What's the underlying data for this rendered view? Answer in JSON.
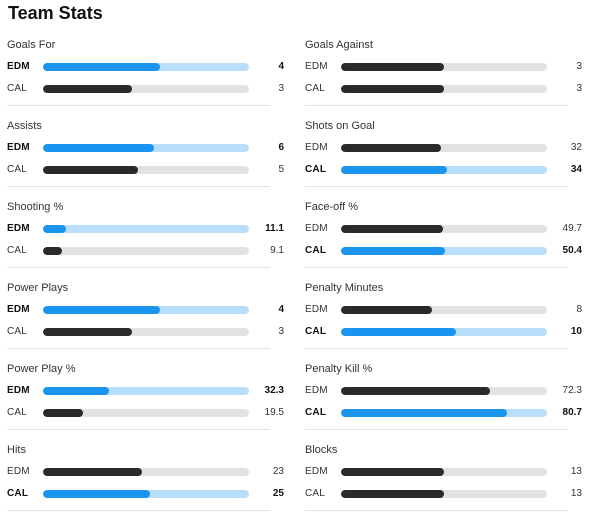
{
  "page": {
    "title": "Team Stats"
  },
  "colors": {
    "leader_fill": "#1b94f0",
    "leader_track": "#b9defb",
    "other_fill": "#2a2a2a",
    "other_track": "#e2e2e2"
  },
  "left": [
    {
      "title": "Goals For",
      "rows": [
        {
          "team": "EDM",
          "value": "4",
          "share": 0.57,
          "leader": true
        },
        {
          "team": "CAL",
          "value": "3",
          "share": 0.43,
          "leader": false
        }
      ]
    },
    {
      "title": "Assists",
      "rows": [
        {
          "team": "EDM",
          "value": "6",
          "share": 0.54,
          "leader": true
        },
        {
          "team": "CAL",
          "value": "5",
          "share": 0.46,
          "leader": false
        }
      ]
    },
    {
      "title": "Shooting %",
      "rows": [
        {
          "team": "EDM",
          "value": "11.1",
          "share": 0.11,
          "leader": true
        },
        {
          "team": "CAL",
          "value": "9.1",
          "share": 0.09,
          "leader": false
        }
      ]
    },
    {
      "title": "Power Plays",
      "rows": [
        {
          "team": "EDM",
          "value": "4",
          "share": 0.57,
          "leader": true
        },
        {
          "team": "CAL",
          "value": "3",
          "share": 0.43,
          "leader": false
        }
      ]
    },
    {
      "title": "Power Play %",
      "rows": [
        {
          "team": "EDM",
          "value": "32.3",
          "share": 0.32,
          "leader": true
        },
        {
          "team": "CAL",
          "value": "19.5",
          "share": 0.195,
          "leader": false
        }
      ]
    },
    {
      "title": "Hits",
      "rows": [
        {
          "team": "EDM",
          "value": "23",
          "share": 0.48,
          "leader": false
        },
        {
          "team": "CAL",
          "value": "25",
          "share": 0.52,
          "leader": true
        }
      ]
    }
  ],
  "right": [
    {
      "title": "Goals Against",
      "rows": [
        {
          "team": "EDM",
          "value": "3",
          "share": 0.5,
          "leader": false
        },
        {
          "team": "CAL",
          "value": "3",
          "share": 0.5,
          "leader": false
        }
      ]
    },
    {
      "title": "Shots on Goal",
      "rows": [
        {
          "team": "EDM",
          "value": "32",
          "share": 0.485,
          "leader": false
        },
        {
          "team": "CAL",
          "value": "34",
          "share": 0.515,
          "leader": true
        }
      ]
    },
    {
      "title": "Face-off %",
      "rows": [
        {
          "team": "EDM",
          "value": "49.7",
          "share": 0.497,
          "leader": false
        },
        {
          "team": "CAL",
          "value": "50.4",
          "share": 0.504,
          "leader": true
        }
      ]
    },
    {
      "title": "Penalty Minutes",
      "rows": [
        {
          "team": "EDM",
          "value": "8",
          "share": 0.44,
          "leader": false
        },
        {
          "team": "CAL",
          "value": "10",
          "share": 0.56,
          "leader": true
        }
      ]
    },
    {
      "title": "Penalty Kill %",
      "rows": [
        {
          "team": "EDM",
          "value": "72.3",
          "share": 0.723,
          "leader": false
        },
        {
          "team": "CAL",
          "value": "80.7",
          "share": 0.807,
          "leader": true
        }
      ]
    },
    {
      "title": "Blocks",
      "rows": [
        {
          "team": "EDM",
          "value": "13",
          "share": 0.5,
          "leader": false
        },
        {
          "team": "CAL",
          "value": "13",
          "share": 0.5,
          "leader": false
        }
      ]
    }
  ]
}
